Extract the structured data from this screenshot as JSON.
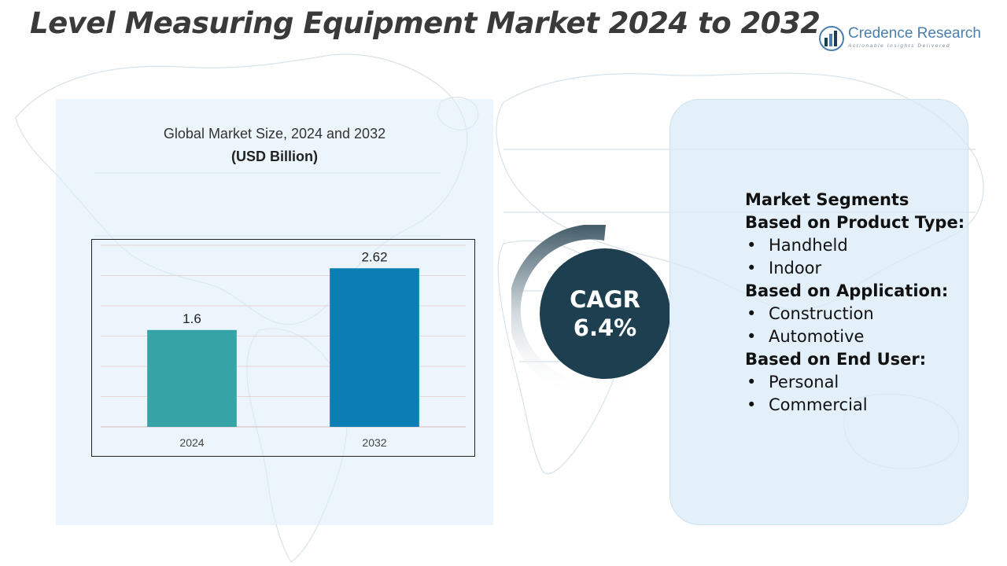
{
  "header": {
    "title": "Level Measuring Equipment Market 2024 to 2032"
  },
  "logo": {
    "name": "Credence Research",
    "tagline": "Actionable Insights Delivered",
    "icon": "bar-chart-globe-icon"
  },
  "colors": {
    "bar_2024": "#36a3a6",
    "bar_2032": "#0b7fb4",
    "cagr_circle": "#1e3f4f",
    "title": "#3a3a3a"
  },
  "chart_data": {
    "type": "bar",
    "title": "Global Market Size, 2024 and 2032",
    "unit": "(USD Billion)",
    "categories": [
      "2024",
      "2032"
    ],
    "values": [
      1.6,
      2.62
    ],
    "value_labels": [
      "1.6",
      "2.62"
    ],
    "ylim": [
      0,
      3
    ],
    "grid": true,
    "xlabel": "",
    "ylabel": ""
  },
  "cagr": {
    "label": "CAGR",
    "value": "6.4%"
  },
  "segments": {
    "heading": "Market Segments",
    "groups": [
      {
        "title": "Based on Product Type:",
        "items": [
          "Handheld",
          "Indoor"
        ]
      },
      {
        "title": "Based on Application:",
        "items": [
          "Construction",
          "Automotive"
        ]
      },
      {
        "title": "Based on End User:",
        "items": [
          "Personal",
          "Commercial"
        ]
      }
    ],
    "bullet": "•"
  }
}
